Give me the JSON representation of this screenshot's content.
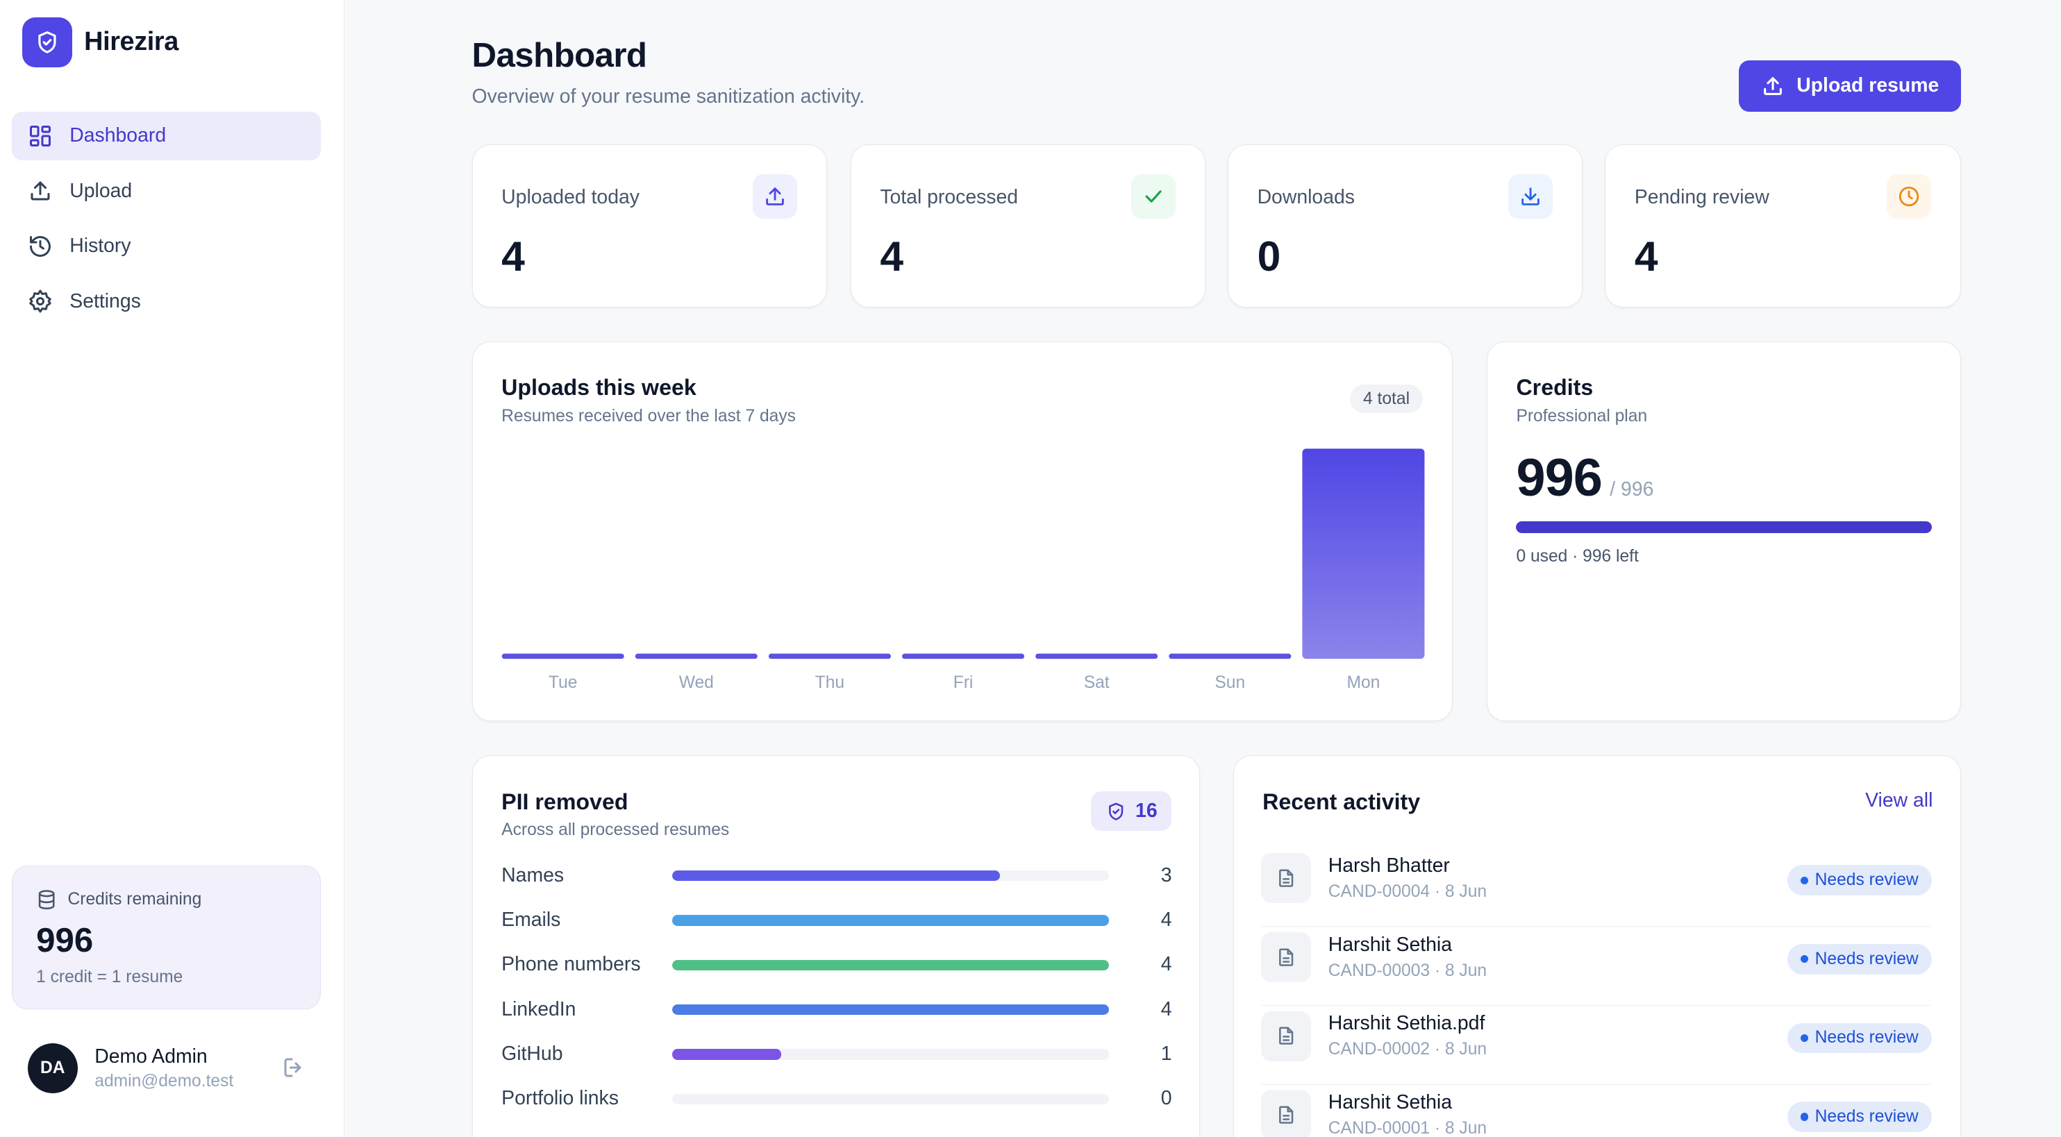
{
  "brand": {
    "name": "Hirezira",
    "logo_icon": "shield-check-icon",
    "accent": "#4f46e5"
  },
  "sidebar": {
    "items": [
      {
        "label": "Dashboard",
        "icon": "dashboard-grid-icon",
        "active": true
      },
      {
        "label": "Upload",
        "icon": "upload-icon",
        "active": false
      },
      {
        "label": "History",
        "icon": "history-icon",
        "active": false
      },
      {
        "label": "Settings",
        "icon": "gear-icon",
        "active": false
      }
    ],
    "credits": {
      "label": "Credits remaining",
      "value": "996",
      "note": "1 credit = 1 resume",
      "icon": "database-icon"
    },
    "user": {
      "initials": "DA",
      "name": "Demo Admin",
      "email": "admin@demo.test",
      "logout_icon": "logout-icon"
    }
  },
  "header": {
    "title": "Dashboard",
    "subtitle": "Overview of your resume sanitization activity.",
    "upload_button": "Upload resume"
  },
  "stats": [
    {
      "label": "Uploaded today",
      "value": "4",
      "icon": "upload-icon",
      "icon_color": "#4f46e5",
      "icon_bg": "#eef0fd"
    },
    {
      "label": "Total processed",
      "value": "4",
      "icon": "check-icon",
      "icon_color": "#16a34a",
      "icon_bg": "#ecfaf1"
    },
    {
      "label": "Downloads",
      "value": "0",
      "icon": "download-icon",
      "icon_color": "#2563eb",
      "icon_bg": "#eef4fd"
    },
    {
      "label": "Pending review",
      "value": "4",
      "icon": "clock-icon",
      "icon_color": "#ea8a17",
      "icon_bg": "#fef6ea"
    }
  ],
  "uploads_week": {
    "title": "Uploads this week",
    "subtitle": "Resumes received over the last 7 days",
    "total_badge": "4 total"
  },
  "chart_data": {
    "type": "bar",
    "categories": [
      "Tue",
      "Wed",
      "Thu",
      "Fri",
      "Sat",
      "Sun",
      "Mon"
    ],
    "values": [
      0,
      0,
      0,
      0,
      0,
      0,
      4
    ],
    "title": "Uploads this week",
    "subtitle": "Resumes received over the last 7 days",
    "xlabel": "",
    "ylabel": "",
    "ylim": [
      0,
      4
    ],
    "grid": false,
    "colors": {
      "bar_top": "#4f46e5",
      "bar_bottom": "#8b84ea"
    }
  },
  "credits_card": {
    "title": "Credits",
    "plan": "Professional plan",
    "remaining": "996",
    "total": "/ 996",
    "remaining_fraction": 1.0,
    "note": "0 used · 996 left"
  },
  "pii": {
    "title": "PII removed",
    "subtitle": "Across all processed resumes",
    "total": "16",
    "max": 4,
    "rows": [
      {
        "label": "Names",
        "count": "3",
        "value": 3,
        "color": "#5b5ce6"
      },
      {
        "label": "Emails",
        "count": "4",
        "value": 4,
        "color": "#4aa0e6"
      },
      {
        "label": "Phone numbers",
        "count": "4",
        "value": 4,
        "color": "#4fbf85"
      },
      {
        "label": "LinkedIn",
        "count": "4",
        "value": 4,
        "color": "#4b7be6"
      },
      {
        "label": "GitHub",
        "count": "1",
        "value": 1,
        "color": "#7c54e6"
      },
      {
        "label": "Portfolio links",
        "count": "0",
        "value": 0,
        "color": "#9aa3b2"
      }
    ]
  },
  "activity": {
    "title": "Recent activity",
    "view_all": "View all",
    "items": [
      {
        "name": "Harsh Bhatter",
        "meta": "CAND-00004 · 8 Jun",
        "status": "Needs review"
      },
      {
        "name": "Harshit Sethia",
        "meta": "CAND-00003 · 8 Jun",
        "status": "Needs review"
      },
      {
        "name": "Harshit Sethia.pdf",
        "meta": "CAND-00002 · 8 Jun",
        "status": "Needs review"
      },
      {
        "name": "Harshit Sethia",
        "meta": "CAND-00001 · 8 Jun",
        "status": "Needs review"
      }
    ]
  }
}
